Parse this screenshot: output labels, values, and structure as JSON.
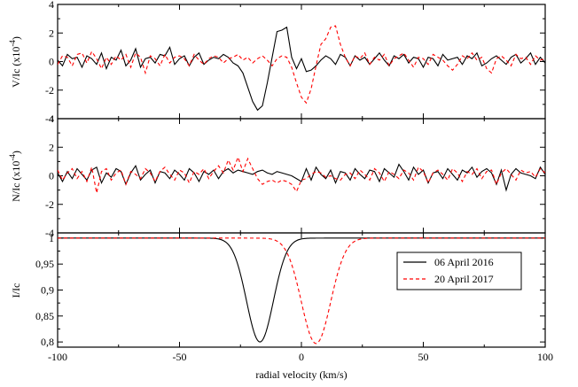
{
  "chart_data": [
    {
      "type": "line",
      "panel": "top",
      "ylabel": "V/Ic (x10",
      "ylabel_exp": "-4",
      "ylabel_close": ")",
      "xlim": [
        -100,
        100
      ],
      "ylim": [
        -4,
        4
      ],
      "yticks": [
        -4,
        -2,
        0,
        2,
        4
      ],
      "ytick_labels": [
        "-4",
        "-2",
        "0",
        "2",
        "4"
      ],
      "grid": false,
      "series": [
        {
          "name": "06 April 2016",
          "color": "#000000",
          "dash": "solid",
          "x": [
            -100,
            -98,
            -96,
            -94,
            -92,
            -90,
            -88,
            -86,
            -84,
            -82,
            -80,
            -78,
            -76,
            -74,
            -72,
            -70,
            -68,
            -66,
            -64,
            -62,
            -60,
            -58,
            -56,
            -54,
            -52,
            -50,
            -48,
            -46,
            -44,
            -42,
            -40,
            -38,
            -36,
            -34,
            -32,
            -30,
            -28,
            -26,
            -24,
            -22,
            -20,
            -18,
            -16,
            -14,
            -12,
            -10,
            -8,
            -6,
            -4,
            -2,
            0,
            2,
            4,
            6,
            8,
            10,
            12,
            14,
            16,
            18,
            20,
            22,
            24,
            26,
            28,
            30,
            32,
            34,
            36,
            38,
            40,
            42,
            44,
            46,
            48,
            50,
            52,
            54,
            56,
            58,
            60,
            62,
            64,
            66,
            68,
            70,
            72,
            74,
            76,
            78,
            80,
            82,
            84,
            86,
            88,
            90,
            92,
            94,
            96,
            98,
            100
          ],
          "y": [
            0.1,
            -0.3,
            0.5,
            0.2,
            0.3,
            -0.4,
            0.4,
            0.2,
            -0.2,
            0.6,
            -0.5,
            0.3,
            0.1,
            0.8,
            -0.3,
            0.1,
            0.9,
            -0.4,
            0.2,
            0.3,
            -0.1,
            0.5,
            0.4,
            1.0,
            -0.2,
            0.2,
            0.4,
            -0.3,
            0.3,
            0.6,
            -0.2,
            0.1,
            0.3,
            0.2,
            0.5,
            0.3,
            -0.1,
            -0.3,
            -0.8,
            -1.8,
            -2.8,
            -3.4,
            -3.1,
            -1.5,
            0.3,
            2.1,
            2.2,
            2.4,
            0.3,
            -0.5,
            0.2,
            -0.7,
            -0.6,
            -0.3,
            0.1,
            0.4,
            0.2,
            -0.2,
            0.5,
            0.3,
            -0.3,
            0.4,
            0.1,
            0.3,
            -0.2,
            0.2,
            0.6,
            0.1,
            -0.3,
            0.4,
            0.2,
            0.5,
            -0.1,
            0.3,
            0.2,
            -0.4,
            0.3,
            0.2,
            -0.3,
            0.5,
            0.1,
            0.2,
            0.3,
            -0.2,
            0.4,
            0.2,
            0.6,
            -0.3,
            -0.1,
            0.2,
            0.4,
            0.1,
            -0.2,
            0.3,
            0.5,
            -0.1,
            0.2,
            0.6,
            -0.2,
            0.3,
            -0.1
          ]
        },
        {
          "name": "20 April 2017",
          "color": "#ff0000",
          "dash": "dashed",
          "x": [
            -100,
            -98,
            -96,
            -94,
            -92,
            -90,
            -88,
            -86,
            -84,
            -82,
            -80,
            -78,
            -76,
            -74,
            -72,
            -70,
            -68,
            -66,
            -64,
            -62,
            -60,
            -58,
            -56,
            -54,
            -52,
            -50,
            -48,
            -46,
            -44,
            -42,
            -40,
            -38,
            -36,
            -34,
            -32,
            -30,
            -28,
            -26,
            -24,
            -22,
            -20,
            -18,
            -16,
            -14,
            -12,
            -10,
            -8,
            -6,
            -4,
            -2,
            0,
            2,
            4,
            6,
            8,
            10,
            12,
            14,
            16,
            18,
            20,
            22,
            24,
            26,
            28,
            30,
            32,
            34,
            36,
            38,
            40,
            42,
            44,
            46,
            48,
            50,
            52,
            54,
            56,
            58,
            60,
            62,
            64,
            66,
            68,
            70,
            72,
            74,
            76,
            78,
            80,
            82,
            84,
            86,
            88,
            90,
            92,
            94,
            96,
            98,
            100
          ],
          "y": [
            -0.2,
            0.4,
            0.3,
            -0.3,
            0.5,
            0.6,
            -0.1,
            0.7,
            0.2,
            -0.5,
            0.3,
            -0.2,
            0.4,
            0.1,
            0.5,
            -0.4,
            0.6,
            0.3,
            -0.8,
            0.4,
            0.2,
            -0.3,
            0.5,
            -0.1,
            0.3,
            0.4,
            0.2,
            -0.3,
            0.5,
            0.1,
            -0.2,
            0.2,
            0.4,
            0.3,
            -0.1,
            0.2,
            0.3,
            0.5,
            0.1,
            0.3,
            -0.1,
            0.2,
            0.4,
            0.1,
            -0.3,
            0.2,
            0.4,
            0.3,
            -0.4,
            -1.5,
            -2.5,
            -2.9,
            -1.9,
            -0.3,
            1.2,
            1.6,
            2.4,
            2.5,
            1.2,
            0.3,
            -0.3,
            0.4,
            0.2,
            0.6,
            -0.2,
            0.3,
            0.1,
            0.5,
            -0.3,
            0.2,
            0.4,
            0.6,
            0.1,
            -0.4,
            0.3,
            0.2,
            -0.2,
            0.5,
            0.3,
            0.1,
            -0.3,
            -0.6,
            -0.2,
            0.4,
            0.2,
            0.6,
            0.1,
            0.3,
            -0.5,
            -0.8,
            0.2,
            0.4,
            0.1,
            -0.3,
            0.5,
            0.2,
            0.3,
            -0.2,
            0.4,
            0.1,
            0.2
          ]
        }
      ]
    },
    {
      "type": "line",
      "panel": "middle",
      "ylabel": "N/Ic (x10",
      "ylabel_exp": "-4",
      "ylabel_close": ")",
      "xlim": [
        -100,
        100
      ],
      "ylim": [
        -4,
        4
      ],
      "yticks": [
        -4,
        -2,
        0,
        2,
        4
      ],
      "ytick_labels": [
        "-4",
        "-2",
        "0",
        "2",
        "4"
      ],
      "grid": false,
      "series": [
        {
          "name": "06 April 2016",
          "color": "#000000",
          "dash": "solid",
          "x": [
            -100,
            -98,
            -96,
            -94,
            -92,
            -90,
            -88,
            -86,
            -84,
            -82,
            -80,
            -78,
            -76,
            -74,
            -72,
            -70,
            -68,
            -66,
            -64,
            -62,
            -60,
            -58,
            -56,
            -54,
            -52,
            -50,
            -48,
            -46,
            -44,
            -42,
            -40,
            -38,
            -36,
            -34,
            -32,
            -30,
            -28,
            -26,
            -24,
            -22,
            -20,
            -18,
            -16,
            -14,
            -12,
            -10,
            -8,
            -6,
            -4,
            -2,
            0,
            2,
            4,
            6,
            8,
            10,
            12,
            14,
            16,
            18,
            20,
            22,
            24,
            26,
            28,
            30,
            32,
            34,
            36,
            38,
            40,
            42,
            44,
            46,
            48,
            50,
            52,
            54,
            56,
            58,
            60,
            62,
            64,
            66,
            68,
            70,
            72,
            74,
            76,
            78,
            80,
            82,
            84,
            86,
            88,
            90,
            92,
            94,
            96,
            98,
            100
          ],
          "y": [
            0.2,
            -0.4,
            0.3,
            -0.2,
            0.5,
            0.1,
            -0.3,
            0.4,
            0.6,
            -0.5,
            0.2,
            -0.1,
            0.5,
            0.3,
            -0.6,
            0.2,
            0.7,
            -0.3,
            0.1,
            0.4,
            -0.5,
            0.3,
            0.2,
            -0.2,
            0.4,
            0.1,
            -0.3,
            0.5,
            0.2,
            -0.4,
            0.3,
            0.1,
            0.4,
            -0.2,
            0.3,
            0.5,
            0.2,
            0.4,
            0.3,
            0.2,
            0.1,
            0.3,
            0.4,
            0.2,
            0.1,
            0.3,
            0.2,
            0.1,
            0.0,
            -0.2,
            -0.4,
            0.5,
            -0.3,
            0.6,
            0.1,
            -0.2,
            0.4,
            -0.5,
            0.3,
            0.2,
            -0.3,
            0.5,
            0.1,
            -0.2,
            0.4,
            0.3,
            -0.4,
            0.5,
            0.2,
            -0.1,
            0.8,
            0.3,
            -0.3,
            0.6,
            0.1,
            0.4,
            -0.5,
            0.2,
            0.3,
            -0.2,
            0.5,
            0.1,
            -0.3,
            0.4,
            0.2,
            0.6,
            -0.1,
            0.3,
            0.5,
            0.2,
            -0.6,
            0.4,
            -1.0,
            0.1,
            0.5,
            0.2,
            0.1,
            0.0,
            -0.2,
            0.6,
            0.1
          ]
        },
        {
          "name": "20 April 2017",
          "color": "#ff0000",
          "dash": "dashed",
          "x": [
            -100,
            -98,
            -96,
            -94,
            -92,
            -90,
            -88,
            -86,
            -84,
            -82,
            -80,
            -78,
            -76,
            -74,
            -72,
            -70,
            -68,
            -66,
            -64,
            -62,
            -60,
            -58,
            -56,
            -54,
            -52,
            -50,
            -48,
            -46,
            -44,
            -42,
            -40,
            -38,
            -36,
            -34,
            -32,
            -30,
            -28,
            -26,
            -24,
            -22,
            -20,
            -18,
            -16,
            -14,
            -12,
            -10,
            -8,
            -6,
            -4,
            -2,
            0,
            2,
            4,
            6,
            8,
            10,
            12,
            14,
            16,
            18,
            20,
            22,
            24,
            26,
            28,
            30,
            32,
            34,
            36,
            38,
            40,
            42,
            44,
            46,
            48,
            50,
            52,
            54,
            56,
            58,
            60,
            62,
            64,
            66,
            68,
            70,
            72,
            74,
            76,
            78,
            80,
            82,
            84,
            86,
            88,
            90,
            92,
            94,
            96,
            98,
            100
          ],
          "y": [
            0.4,
            -0.3,
            0.2,
            0.5,
            -0.2,
            0.3,
            -0.4,
            0.6,
            -1.2,
            0.3,
            0.5,
            -0.3,
            0.2,
            0.4,
            -0.6,
            0.3,
            0.1,
            -0.2,
            0.5,
            0.2,
            -0.4,
            0.3,
            0.6,
            0.1,
            -0.3,
            0.4,
            0.2,
            -0.5,
            0.3,
            0.1,
            0.5,
            -0.2,
            0.3,
            0.7,
            0.2,
            1.1,
            0.4,
            1.3,
            0.3,
            1.2,
            0.5,
            -0.2,
            -0.6,
            -0.4,
            -0.3,
            -0.5,
            -0.3,
            -0.4,
            -0.6,
            -1.1,
            -0.3,
            -0.2,
            0.1,
            0.3,
            0.2,
            -0.1,
            0.0,
            -0.2,
            -0.3,
            0.1,
            0.2,
            -0.2,
            0.4,
            0.1,
            -0.3,
            0.5,
            0.2,
            -0.4,
            0.3,
            0.1,
            -0.2,
            0.4,
            0.2,
            -0.3,
            0.6,
            0.3,
            -0.5,
            0.2,
            0.4,
            0.1,
            -0.3,
            0.5,
            0.2,
            -0.4,
            0.3,
            0.1,
            0.5,
            -0.2,
            0.3,
            0.4,
            -0.6,
            0.2,
            0.5,
            0.1,
            -0.3,
            0.4,
            0.2,
            0.3,
            -0.1,
            0.5,
            0.2
          ]
        }
      ]
    },
    {
      "type": "line",
      "panel": "bottom",
      "ylabel": "I/Ic",
      "xlabel": "radial velocity (km/s)",
      "xlim": [
        -100,
        100
      ],
      "ylim": [
        0.79,
        1.01
      ],
      "xticks": [
        -100,
        -50,
        0,
        50,
        100
      ],
      "xtick_labels": [
        "-100",
        "-50",
        "0",
        "50",
        "100"
      ],
      "yticks": [
        0.8,
        0.85,
        0.9,
        0.95,
        1.0
      ],
      "ytick_labels": [
        "0,8",
        "0,85",
        "0,9",
        "0,95",
        "1"
      ],
      "grid": false,
      "legend_placement": "right",
      "series": [
        {
          "name": "06 April 2016",
          "color": "#000000",
          "dash": "solid",
          "profile": "gaussian",
          "continuum": 1.0,
          "min": 0.8,
          "center": -17,
          "sigma": 5.5
        },
        {
          "name": "20 April 2017",
          "color": "#ff0000",
          "dash": "dashed",
          "profile": "gaussian",
          "continuum": 1.0,
          "min": 0.797,
          "center": 6,
          "sigma": 6.0
        }
      ]
    }
  ]
}
